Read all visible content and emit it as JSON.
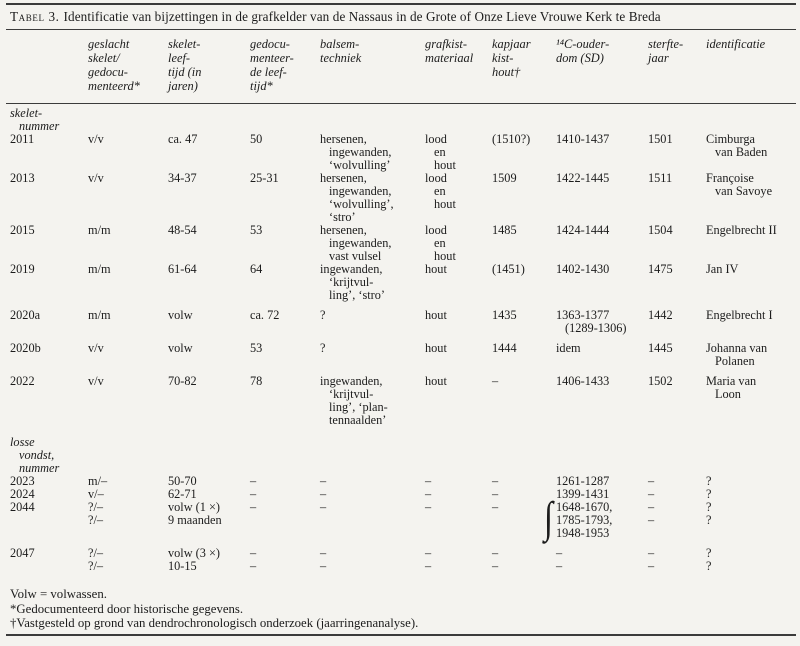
{
  "colors": {
    "paper": "#f4f3ef",
    "ink": "#1c1c1c",
    "rule": "#3b3b3b"
  },
  "title": {
    "prefix": "Tabel 3.",
    "rest": "Identificatie van bijzettingen in de grafkelder van de Nassaus in de Grote of Onze Lieve Vrouwe Kerk te Breda"
  },
  "icons": {
    "group_brace": "∫"
  },
  "table": {
    "columns": [
      {
        "id": "skeletnummer",
        "header_lines": []
      },
      {
        "id": "geslacht",
        "header_lines": [
          "geslacht",
          "skelet/",
          "gedocu-",
          "menteerd*"
        ]
      },
      {
        "id": "skeletleeftijd",
        "header_lines": [
          "skelet-",
          "leef-",
          "tijd (in",
          "jaren)"
        ]
      },
      {
        "id": "gedoc-leeftijd",
        "header_lines": [
          "gedocu-",
          "menteer-",
          "de leef-",
          "tijd*"
        ]
      },
      {
        "id": "balsemtechniek",
        "header_lines": [
          "balsem-",
          "techniek"
        ]
      },
      {
        "id": "grafkistmateriaal",
        "header_lines": [
          "grafkist-",
          "materiaal"
        ]
      },
      {
        "id": "kapjaar-kisthout",
        "header_lines": [
          "kapjaar",
          "kist-",
          "hout†"
        ]
      },
      {
        "id": "c14-ouderdom",
        "header_lines": [
          "¹⁴C-ouder-",
          "dom (SD)"
        ]
      },
      {
        "id": "sterftejaar",
        "header_lines": [
          "sterfte-",
          "jaar"
        ]
      },
      {
        "id": "identificatie",
        "header_lines": [
          "identificatie"
        ]
      }
    ],
    "sections": [
      {
        "id": "skelet-nummer",
        "label_lines": [
          "skelet-",
          "nummer"
        ],
        "rows": [
          {
            "id": "2011",
            "cells": [
              [
                "2011"
              ],
              [
                "v/v"
              ],
              [
                "ca. 47"
              ],
              [
                "50"
              ],
              [
                "hersenen,",
                "ingewanden,",
                "‘wolvulling’"
              ],
              [
                "lood",
                "en",
                "hout"
              ],
              [
                "(1510?)"
              ],
              [
                "1410-1437"
              ],
              [
                "1501"
              ],
              [
                "Cimburga",
                "van Baden"
              ]
            ]
          },
          {
            "id": "2013",
            "cells": [
              [
                "2013"
              ],
              [
                "v/v"
              ],
              [
                "34-37"
              ],
              [
                "25-31"
              ],
              [
                "hersenen,",
                "ingewanden,",
                "‘wolvulling’,",
                "‘stro’"
              ],
              [
                "lood",
                "en",
                "hout"
              ],
              [
                "1509"
              ],
              [
                "1422-1445"
              ],
              [
                "1511"
              ],
              [
                "Françoise",
                "van Savoye"
              ]
            ]
          },
          {
            "id": "2015",
            "cells": [
              [
                "2015"
              ],
              [
                "m/m"
              ],
              [
                "48-54"
              ],
              [
                "53"
              ],
              [
                "hersenen,",
                "ingewanden,",
                "vast vulsel"
              ],
              [
                "lood",
                "en",
                "hout"
              ],
              [
                "1485"
              ],
              [
                "1424-1444"
              ],
              [
                "1504"
              ],
              [
                "Engelbrecht II"
              ]
            ]
          },
          {
            "id": "2019",
            "cells": [
              [
                "2019"
              ],
              [
                "m/m"
              ],
              [
                "61-64"
              ],
              [
                "64"
              ],
              [
                "ingewanden,",
                "‘krijtvul-",
                "ling’, ‘stro’"
              ],
              [
                "hout"
              ],
              [
                "(1451)"
              ],
              [
                "1402-1430"
              ],
              [
                "1475"
              ],
              [
                "Jan IV"
              ]
            ]
          },
          {
            "id": "2020a",
            "cells": [
              [
                "2020a"
              ],
              [
                "m/m"
              ],
              [
                "volw"
              ],
              [
                "ca. 72"
              ],
              [
                "?"
              ],
              [
                "hout"
              ],
              [
                "1435"
              ],
              [
                "1363-1377",
                "(1289-1306)"
              ],
              [
                "1442"
              ],
              [
                "Engelbrecht I"
              ]
            ]
          },
          {
            "id": "2020b",
            "cells": [
              [
                "2020b"
              ],
              [
                "v/v"
              ],
              [
                "volw"
              ],
              [
                "53"
              ],
              [
                "?"
              ],
              [
                "hout"
              ],
              [
                "1444"
              ],
              [
                "idem"
              ],
              [
                "1445"
              ],
              [
                "Johanna van",
                "Polanen"
              ]
            ]
          },
          {
            "id": "2022",
            "cells": [
              [
                "2022"
              ],
              [
                "v/v"
              ],
              [
                "70-82"
              ],
              [
                "78"
              ],
              [
                "ingewanden,",
                "‘krijtvul-",
                "ling’, ‘plan-",
                "tennaalden’"
              ],
              [
                "hout"
              ],
              [
                "–"
              ],
              [
                "1406-1433"
              ],
              [
                "1502"
              ],
              [
                "Maria van",
                "Loon"
              ]
            ]
          }
        ]
      },
      {
        "id": "losse-vondst",
        "label_lines": [
          "losse",
          "vondst,",
          "nummer"
        ],
        "rows": [
          {
            "id": "2023",
            "cells": [
              [
                "2023"
              ],
              [
                "m/–"
              ],
              [
                "50-70"
              ],
              [
                "–"
              ],
              [
                "–"
              ],
              [
                "–"
              ],
              [
                "–"
              ],
              [
                "1261-1287"
              ],
              [
                "–"
              ],
              [
                "?"
              ]
            ]
          },
          {
            "id": "2024",
            "cells": [
              [
                "2024"
              ],
              [
                "v/–"
              ],
              [
                "62-71"
              ],
              [
                "–"
              ],
              [
                "–"
              ],
              [
                "–"
              ],
              [
                "–"
              ],
              [
                "1399-1431"
              ],
              [
                "–"
              ],
              [
                "?"
              ]
            ]
          },
          {
            "id": "2044",
            "cells": [
              [
                "2044"
              ],
              {
                "lines": [
                  "?/–",
                  "?/–"
                ],
                "hang": false
              },
              {
                "lines": [
                  "volw (1 ×)",
                  "9 maanden"
                ],
                "hang": false
              },
              [
                "–"
              ],
              [
                "–"
              ],
              [
                "–"
              ],
              [
                "–"
              ],
              {
                "lines": [
                  "1648-1670,",
                  "1785-1793,",
                  "1948-1953"
                ],
                "hang": false,
                "brace": true
              },
              {
                "lines": [
                  "–",
                  "–"
                ],
                "hang": false
              },
              {
                "lines": [
                  "?",
                  "?"
                ],
                "hang": false
              }
            ]
          },
          {
            "id": "2047",
            "cells": [
              [
                "2047"
              ],
              {
                "lines": [
                  "?/–",
                  "?/–"
                ],
                "hang": false
              },
              {
                "lines": [
                  "volw (3 ×)",
                  "10-15"
                ],
                "hang": false
              },
              {
                "lines": [
                  "–",
                  "–"
                ],
                "hang": false
              },
              {
                "lines": [
                  "–",
                  "–"
                ],
                "hang": false
              },
              {
                "lines": [
                  "–",
                  "–"
                ],
                "hang": false
              },
              {
                "lines": [
                  "–",
                  "–"
                ],
                "hang": false
              },
              {
                "lines": [
                  "–",
                  "–"
                ],
                "hang": false
              },
              {
                "lines": [
                  "–",
                  "–"
                ],
                "hang": false
              },
              {
                "lines": [
                  "?",
                  "?"
                ],
                "hang": false
              }
            ]
          }
        ]
      }
    ]
  },
  "footnotes": [
    "Volw = volwassen.",
    "*Gedocumenteerd door historische gegevens.",
    "†Vastgesteld op grond van dendrochronologisch onderzoek (jaarringenanalyse)."
  ]
}
